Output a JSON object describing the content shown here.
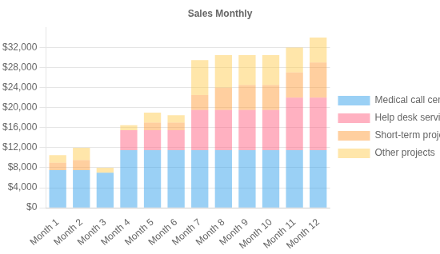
{
  "chart_data": {
    "type": "bar",
    "title": "Sales Monthly",
    "categories": [
      "Month 1",
      "Month 2",
      "Month 3",
      "Month 4",
      "Month 5",
      "Month 6",
      "Month 7",
      "Month 8",
      "Month 9",
      "Month 10",
      "Month 11",
      "Month 12"
    ],
    "series": [
      {
        "name": "Medical call center services",
        "values": [
          7500,
          7500,
          7000,
          11500,
          11500,
          11500,
          11500,
          11500,
          11500,
          11500,
          11500,
          11500
        ]
      },
      {
        "name": "Help desk services",
        "values": [
          0,
          0,
          0,
          4000,
          4000,
          4000,
          8000,
          8000,
          8000,
          8000,
          10500,
          10500
        ]
      },
      {
        "name": "Short-term projects",
        "values": [
          1500,
          2000,
          0,
          0,
          1500,
          1500,
          3000,
          4500,
          5000,
          5000,
          5000,
          7000
        ]
      },
      {
        "name": "Other projects",
        "values": [
          1500,
          2500,
          1000,
          1000,
          2000,
          1500,
          7000,
          6500,
          6000,
          6000,
          5000,
          5000
        ]
      }
    ],
    "stacked": true,
    "ylim": [
      0,
      36000
    ],
    "yticks": [
      {
        "value": 0,
        "label": "$0"
      },
      {
        "value": 4000,
        "label": "$4,000"
      },
      {
        "value": 8000,
        "label": "$8,000"
      },
      {
        "value": 12000,
        "label": "$12,000"
      },
      {
        "value": 16000,
        "label": "$16,000"
      },
      {
        "value": 20000,
        "label": "$20,000"
      },
      {
        "value": 24000,
        "label": "$24,000"
      },
      {
        "value": 28000,
        "label": "$28,000"
      },
      {
        "value": 32000,
        "label": "$32,000"
      }
    ],
    "grid": true,
    "legend": "right"
  }
}
